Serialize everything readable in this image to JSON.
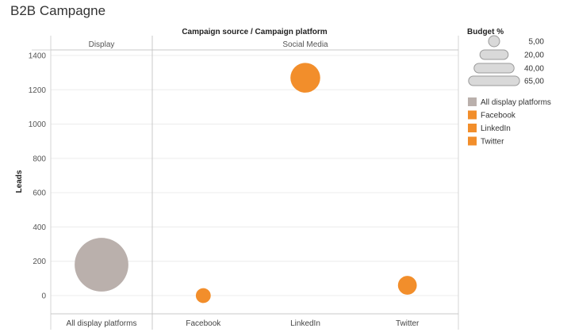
{
  "chart_data": {
    "type": "scatter",
    "title": "B2B Campagne",
    "column_header": "Campaign source  /  Campaign platform",
    "ylabel": "Leads",
    "ylim": [
      -100,
      1450
    ],
    "yticks": [
      0,
      200,
      400,
      600,
      800,
      1000,
      1200,
      1400
    ],
    "panels": [
      {
        "label": "Display",
        "categories": [
          "All display platforms"
        ]
      },
      {
        "label": "Social Media",
        "categories": [
          "Facebook",
          "LinkedIn",
          "Twitter"
        ]
      }
    ],
    "points": [
      {
        "category": "All display platforms",
        "leads": 180,
        "budget": 65,
        "color": "#bab0ac"
      },
      {
        "category": "Facebook",
        "leads": 0,
        "budget": 5,
        "color": "#f28e2b"
      },
      {
        "category": "LinkedIn",
        "leads": 1270,
        "budget": 20,
        "color": "#f28e2b"
      },
      {
        "category": "Twitter",
        "leads": 60,
        "budget": 8,
        "color": "#f28e2b"
      }
    ],
    "size_legend": {
      "title": "Budget %",
      "values": [
        5,
        20,
        40,
        65
      ],
      "labels": [
        "5,00",
        "20,00",
        "40,00",
        "65,00"
      ]
    },
    "color_legend": [
      {
        "label": "All display platforms",
        "color": "#bab0ac"
      },
      {
        "label": "Facebook",
        "color": "#f28e2b"
      },
      {
        "label": "LinkedIn",
        "color": "#f28e2b"
      },
      {
        "label": "Twitter",
        "color": "#f28e2b"
      }
    ],
    "grid": true
  }
}
